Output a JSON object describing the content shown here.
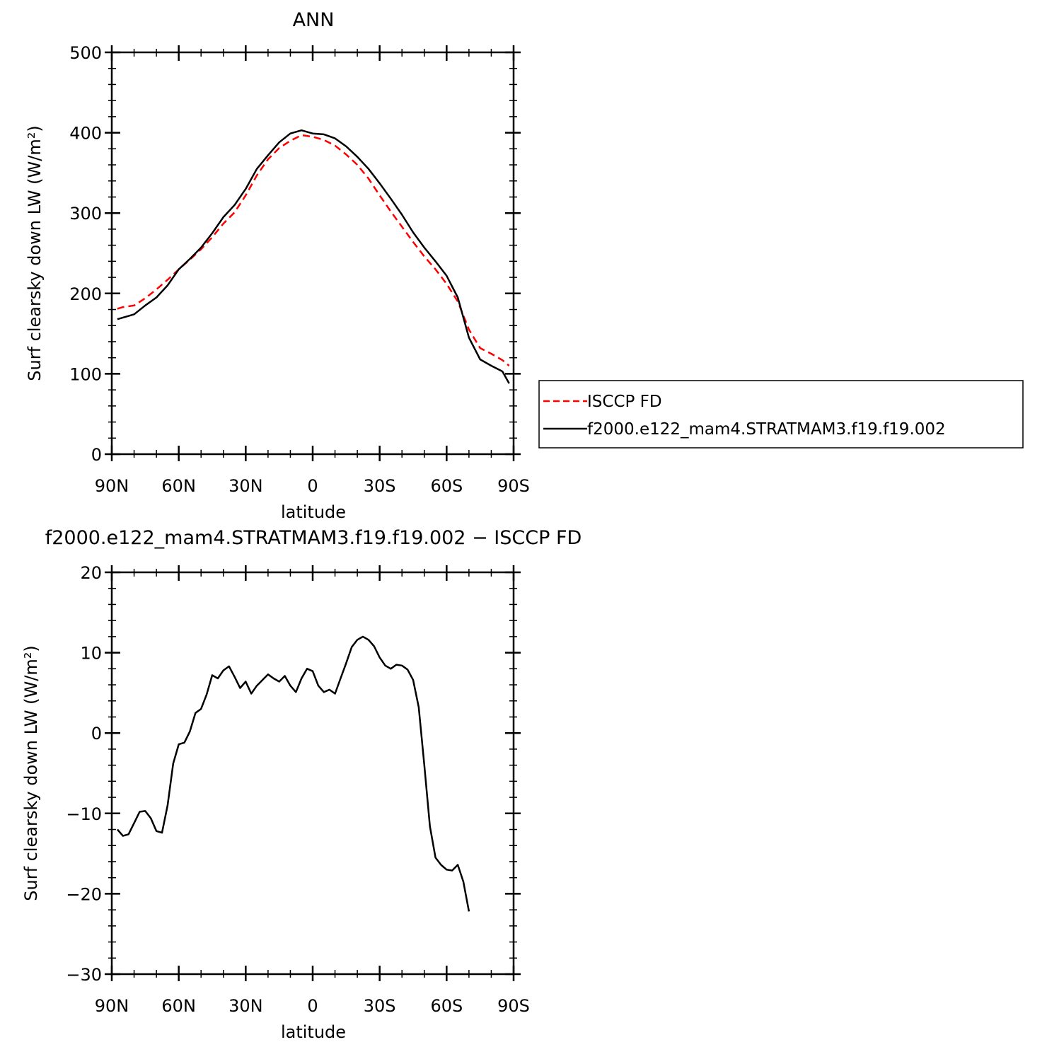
{
  "chart_data": [
    {
      "type": "line",
      "title": "ANN",
      "xlabel": "latitude",
      "ylabel": "Surf clearsky down LW (W/m²)",
      "xlim": [
        -90,
        90
      ],
      "ylim": [
        0,
        500
      ],
      "x_tick_labels": [
        "90N",
        "60N",
        "30N",
        "0",
        "30S",
        "60S",
        "90S"
      ],
      "y_tick_labels": [
        "0",
        "100",
        "200",
        "300",
        "400",
        "500"
      ],
      "legend": {
        "placement": "right",
        "entries": [
          "ISCCP FD",
          "f2000.e122_mam4.STRATMAM3.f19.f19.002"
        ]
      },
      "series": [
        {
          "name": "ISCCP FD",
          "color": "#ff0000",
          "style": "dashed",
          "points": [
            [
              -87.5,
              181
            ],
            [
              -85,
              183
            ],
            [
              -80,
              185
            ],
            [
              -75,
              194
            ],
            [
              -70,
              205
            ],
            [
              -65,
              217
            ],
            [
              -60,
              230
            ],
            [
              -55,
              242
            ],
            [
              -50,
              255
            ],
            [
              -45,
              270
            ],
            [
              -40,
              287
            ],
            [
              -35,
              301
            ],
            [
              -30,
              322
            ],
            [
              -25,
              347
            ],
            [
              -20,
              367
            ],
            [
              -15,
              381
            ],
            [
              -10,
              390
            ],
            [
              -5,
              397
            ],
            [
              0,
              395
            ],
            [
              5,
              391
            ],
            [
              10,
              384
            ],
            [
              15,
              373
            ],
            [
              20,
              360
            ],
            [
              25,
              343
            ],
            [
              30,
              322
            ],
            [
              35,
              302
            ],
            [
              40,
              283
            ],
            [
              45,
              264
            ],
            [
              50,
              246
            ],
            [
              55,
              230
            ],
            [
              60,
              212
            ],
            [
              65,
              190
            ],
            [
              70,
              155
            ],
            [
              75,
              132
            ],
            [
              80,
              125
            ],
            [
              85,
              117
            ],
            [
              88,
              110
            ]
          ]
        },
        {
          "name": "f2000.e122_mam4.STRATMAM3.f19.f19.002",
          "color": "#000000",
          "style": "solid",
          "points": [
            [
              -87.5,
              168
            ],
            [
              -85,
              170
            ],
            [
              -80,
              174
            ],
            [
              -75,
              185
            ],
            [
              -70,
              195
            ],
            [
              -65,
              210
            ],
            [
              -60,
              230
            ],
            [
              -55,
              243
            ],
            [
              -50,
              257
            ],
            [
              -45,
              275
            ],
            [
              -40,
              295
            ],
            [
              -35,
              310
            ],
            [
              -30,
              330
            ],
            [
              -25,
              355
            ],
            [
              -20,
              372
            ],
            [
              -15,
              388
            ],
            [
              -10,
              399
            ],
            [
              -5,
              403
            ],
            [
              0,
              399
            ],
            [
              5,
              398
            ],
            [
              10,
              393
            ],
            [
              15,
              383
            ],
            [
              20,
              370
            ],
            [
              25,
              355
            ],
            [
              30,
              337
            ],
            [
              35,
              318
            ],
            [
              40,
              298
            ],
            [
              45,
              276
            ],
            [
              50,
              257
            ],
            [
              55,
              240
            ],
            [
              60,
              222
            ],
            [
              65,
              195
            ],
            [
              70,
              145
            ],
            [
              75,
              118
            ],
            [
              80,
              110
            ],
            [
              85,
              103
            ],
            [
              88,
              88
            ]
          ]
        }
      ]
    },
    {
      "type": "line",
      "title": "f2000.e122_mam4.STRATMAM3.f19.f19.002 − ISCCP FD",
      "xlabel": "latitude",
      "ylabel": "Surf clearsky down LW (W/m²)",
      "xlim": [
        -90,
        90
      ],
      "ylim": [
        -30,
        20
      ],
      "x_tick_labels": [
        "90N",
        "60N",
        "30N",
        "0",
        "30S",
        "60S",
        "90S"
      ],
      "y_tick_labels": [
        "−30",
        "−20",
        "−10",
        "0",
        "10",
        "20"
      ],
      "series": [
        {
          "color": "#000000",
          "style": "solid",
          "points": [
            [
              -87.5,
              -12
            ],
            [
              -85,
              -12.8
            ],
            [
              -82.5,
              -12.6
            ],
            [
              -80,
              -11.2
            ],
            [
              -77.5,
              -9.8
            ],
            [
              -75,
              -9.7
            ],
            [
              -72.5,
              -10.6
            ],
            [
              -70,
              -12.2
            ],
            [
              -67.5,
              -12.4
            ],
            [
              -65,
              -9
            ],
            [
              -62.5,
              -3.8
            ],
            [
              -60,
              -1.4
            ],
            [
              -57.5,
              -1.2
            ],
            [
              -55,
              0.2
            ],
            [
              -52.5,
              2.5
            ],
            [
              -50,
              3
            ],
            [
              -47.5,
              4.8
            ],
            [
              -45,
              7.2
            ],
            [
              -42.5,
              6.8
            ],
            [
              -40,
              7.8
            ],
            [
              -37.5,
              8.3
            ],
            [
              -35,
              7
            ],
            [
              -32.5,
              5.6
            ],
            [
              -30,
              6.4
            ],
            [
              -27.5,
              4.9
            ],
            [
              -25,
              5.9
            ],
            [
              -22.5,
              6.6
            ],
            [
              -20,
              7.3
            ],
            [
              -17.5,
              6.8
            ],
            [
              -15,
              6.4
            ],
            [
              -12.5,
              7.1
            ],
            [
              -10,
              5.9
            ],
            [
              -7.5,
              5.1
            ],
            [
              -5,
              6.8
            ],
            [
              -2.5,
              8
            ],
            [
              0,
              7.7
            ],
            [
              2.5,
              5.9
            ],
            [
              5,
              5.1
            ],
            [
              7.5,
              5.4
            ],
            [
              10,
              4.9
            ],
            [
              12.5,
              6.8
            ],
            [
              15,
              8.7
            ],
            [
              17.5,
              10.7
            ],
            [
              20,
              11.6
            ],
            [
              22.5,
              12
            ],
            [
              25,
              11.6
            ],
            [
              27.5,
              10.8
            ],
            [
              30,
              9.4
            ],
            [
              32.5,
              8.4
            ],
            [
              35,
              8
            ],
            [
              37.5,
              8.5
            ],
            [
              40,
              8.4
            ],
            [
              42.5,
              7.9
            ],
            [
              45,
              6.6
            ],
            [
              47.5,
              3.2
            ],
            [
              50,
              -4
            ],
            [
              52.5,
              -11.6
            ],
            [
              55,
              -15.5
            ],
            [
              57.5,
              -16.4
            ],
            [
              60,
              -17
            ],
            [
              62.5,
              -17.1
            ],
            [
              65,
              -16.4
            ],
            [
              67.5,
              -18.5
            ],
            [
              70,
              -22.2
            ]
          ]
        }
      ]
    }
  ]
}
